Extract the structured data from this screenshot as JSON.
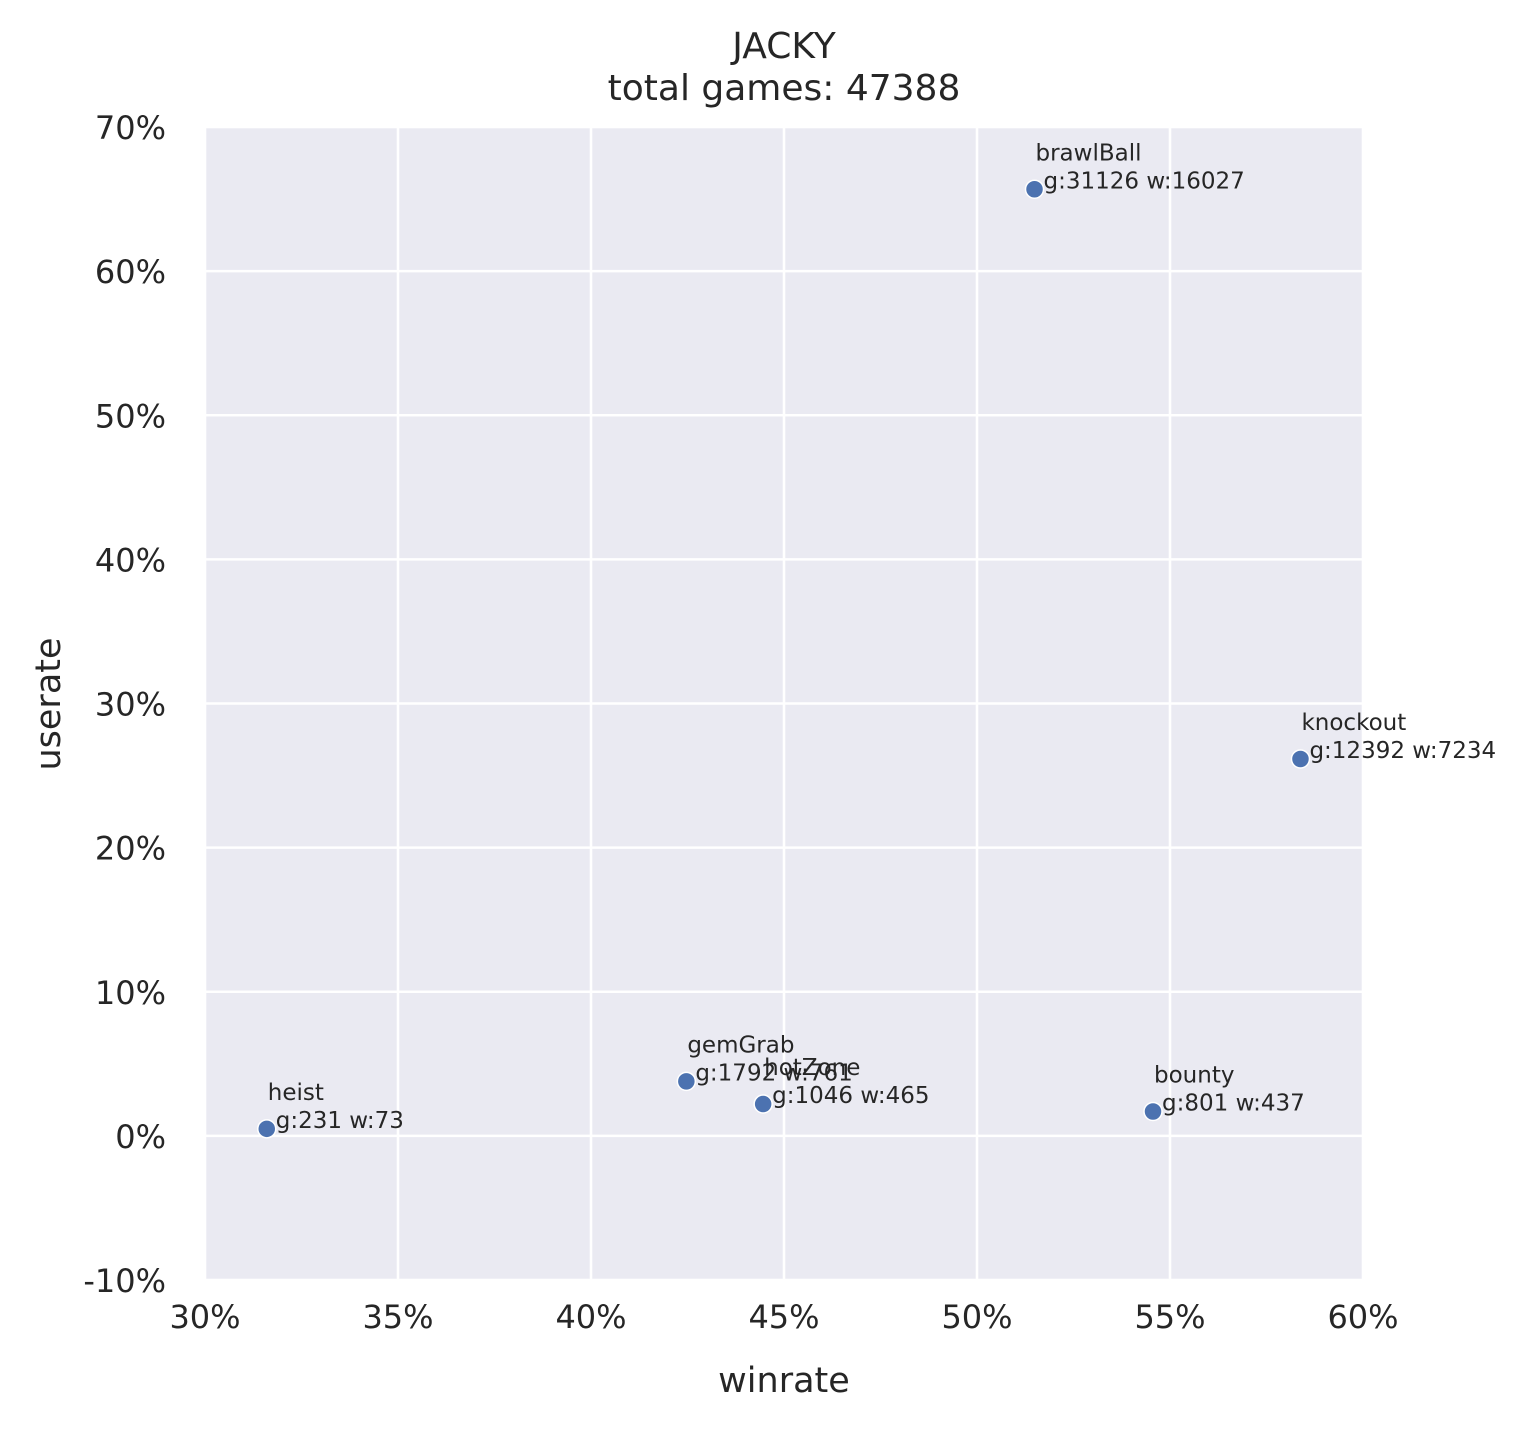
{
  "chart_data": {
    "type": "scatter",
    "title": "JACKY",
    "subtitle": "total games: 47388",
    "xlabel": "winrate",
    "ylabel": "userate",
    "xlim": [
      0.3,
      0.6
    ],
    "ylim": [
      -0.1,
      0.7
    ],
    "xticks": [
      0.3,
      0.35,
      0.4,
      0.45,
      0.5,
      0.55,
      0.6
    ],
    "xtick_labels": [
      "30%",
      "35%",
      "40%",
      "45%",
      "50%",
      "55%",
      "60%"
    ],
    "yticks": [
      -0.1,
      0.0,
      0.1,
      0.2,
      0.3,
      0.4,
      0.5,
      0.6,
      0.7
    ],
    "ytick_labels": [
      "-10%",
      "0%",
      "10%",
      "20%",
      "30%",
      "40%",
      "50%",
      "60%",
      "70%"
    ],
    "grid": true,
    "colors": {
      "background": "#eaeaf2",
      "grid": "#ffffff",
      "marker": "#4c72b0"
    },
    "points": [
      {
        "name": "brawlBall",
        "label": "g:31126 w:16027",
        "x": 0.5149,
        "y": 0.6568
      },
      {
        "name": "knockout",
        "label": "g:12392 w:7234",
        "x": 0.5838,
        "y": 0.2615
      },
      {
        "name": "gemGrab",
        "label": "g:1792 w:761",
        "x": 0.4247,
        "y": 0.0378
      },
      {
        "name": "hotZone",
        "label": "g:1046 w:465",
        "x": 0.4446,
        "y": 0.0221
      },
      {
        "name": "bounty",
        "label": "g:801 w:437",
        "x": 0.5456,
        "y": 0.0169
      },
      {
        "name": "heist",
        "label": "g:231 w:73",
        "x": 0.316,
        "y": 0.0049
      }
    ]
  }
}
